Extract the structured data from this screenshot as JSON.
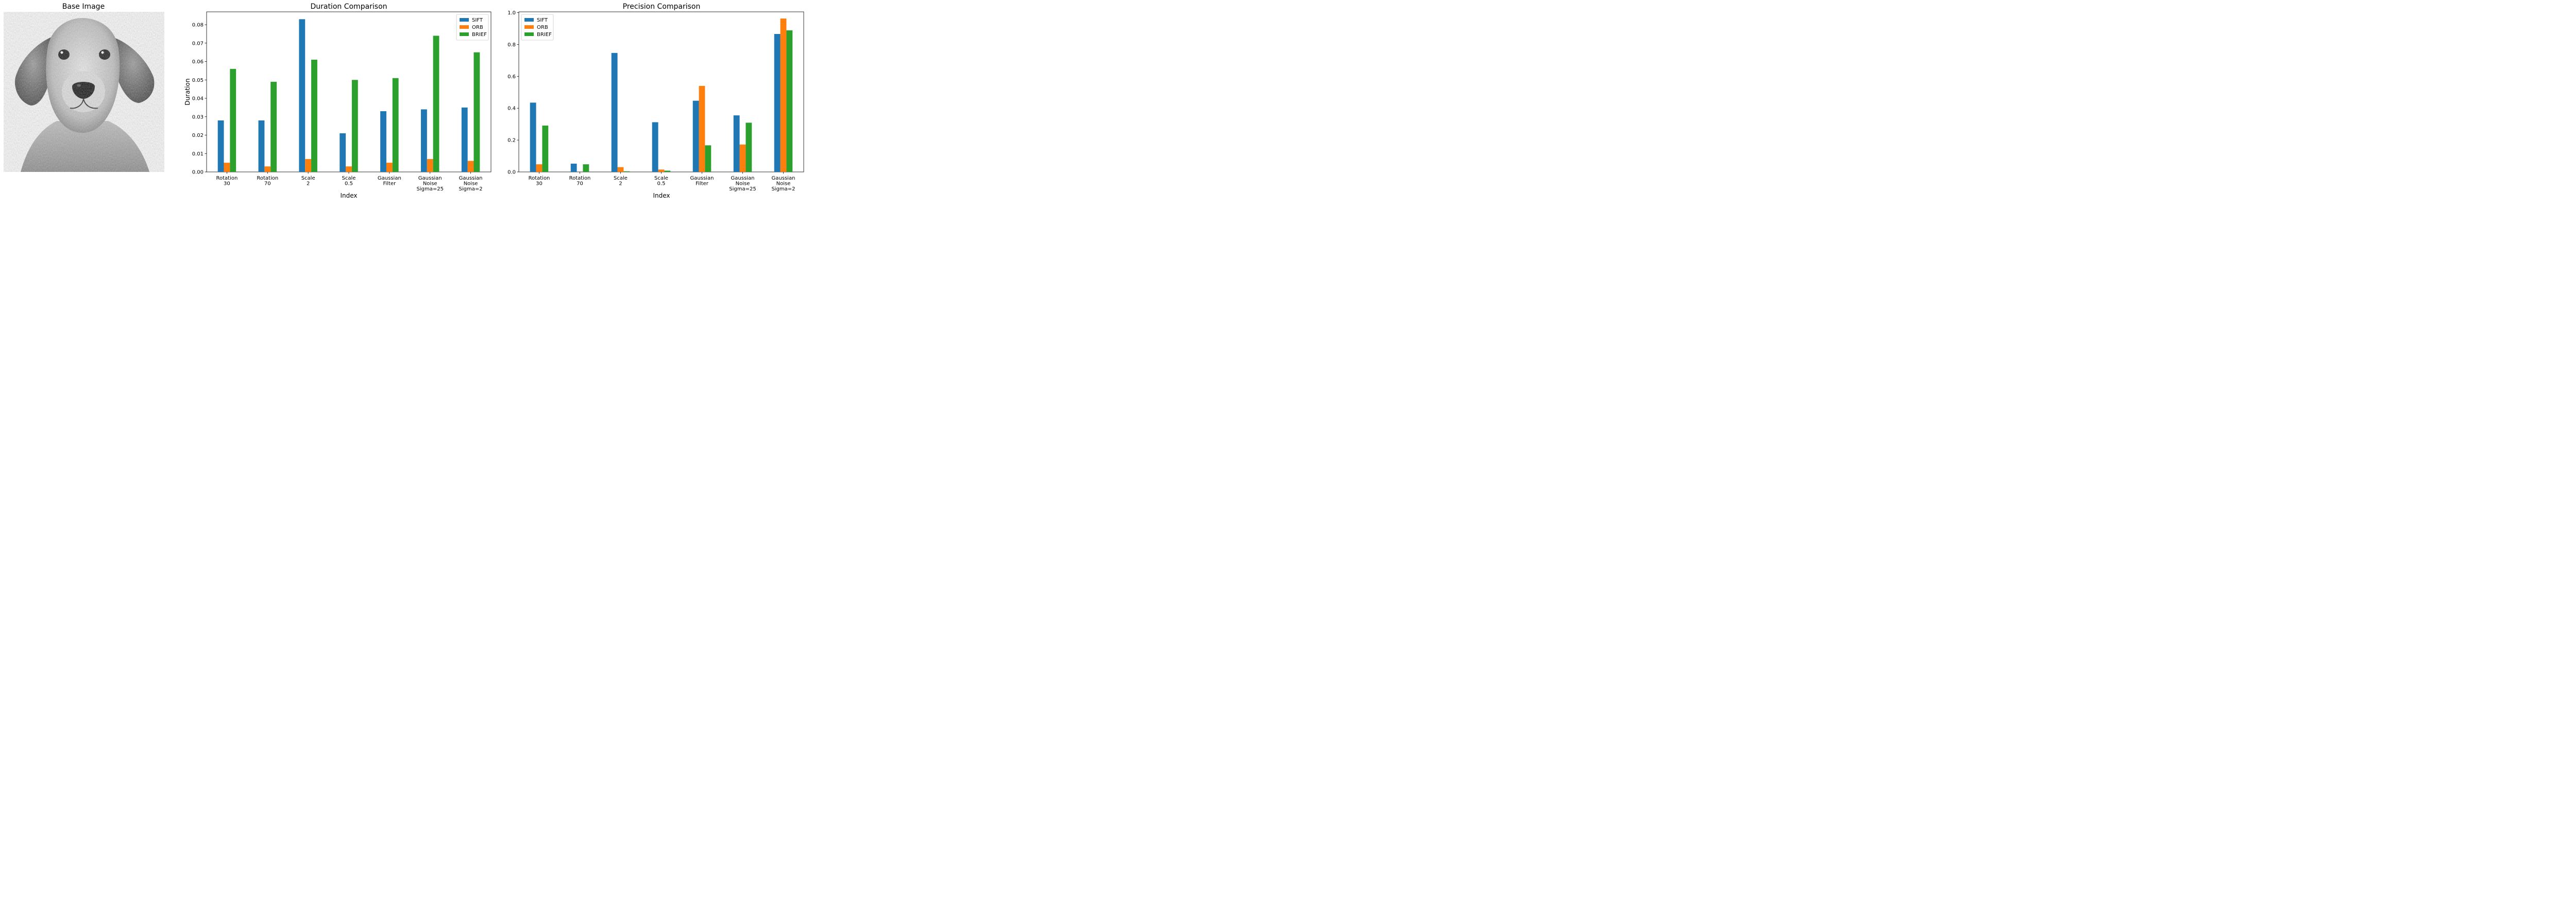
{
  "base_image": {
    "title": "Base Image",
    "subject": "grayscale golden retriever portrait"
  },
  "colors": {
    "SIFT": "#1f77b4",
    "ORB": "#ff7f0e",
    "BRIEF": "#2ca02c"
  },
  "chart_data": [
    {
      "type": "bar",
      "title": "Duration Comparison",
      "xlabel": "Index",
      "ylabel": "Duration",
      "ylim": [
        0,
        0.087
      ],
      "yticks": [
        0.0,
        0.01,
        0.02,
        0.03,
        0.04,
        0.05,
        0.06,
        0.07,
        0.08
      ],
      "ytick_labels": [
        "0.00",
        "0.01",
        "0.02",
        "0.03",
        "0.04",
        "0.05",
        "0.06",
        "0.07",
        "0.08"
      ],
      "categories": [
        [
          "Rotation",
          "30"
        ],
        [
          "Rotation",
          "70"
        ],
        [
          "Scale",
          "2"
        ],
        [
          "Scale",
          "0.5"
        ],
        [
          "Gaussian",
          "Filter"
        ],
        [
          "Gaussian",
          "Noise",
          "Sigma=25"
        ],
        [
          "Gaussian",
          "Noise",
          "Sigma=2"
        ]
      ],
      "series": [
        {
          "name": "SIFT",
          "values": [
            0.028,
            0.028,
            0.083,
            0.021,
            0.033,
            0.034,
            0.035
          ]
        },
        {
          "name": "ORB",
          "values": [
            0.005,
            0.003,
            0.007,
            0.003,
            0.005,
            0.007,
            0.006
          ]
        },
        {
          "name": "BRIEF",
          "values": [
            0.056,
            0.049,
            0.061,
            0.05,
            0.051,
            0.074,
            0.065
          ]
        }
      ],
      "legend": "top-right",
      "grid": false
    },
    {
      "type": "bar",
      "title": "Precision Comparison",
      "xlabel": "Index",
      "ylabel": "",
      "ylim": [
        0,
        1.005
      ],
      "yticks": [
        0.0,
        0.2,
        0.4,
        0.6,
        0.8,
        1.0
      ],
      "ytick_labels": [
        "0.0",
        "0.2",
        "0.4",
        "0.6",
        "0.8",
        "1.0"
      ],
      "categories": [
        [
          "Rotation",
          "30"
        ],
        [
          "Rotation",
          "70"
        ],
        [
          "Scale",
          "2"
        ],
        [
          "Scale",
          "0.5"
        ],
        [
          "Gaussian",
          "Filter"
        ],
        [
          "Gaussian",
          "Noise",
          "Sigma=25"
        ],
        [
          "Gaussian",
          "Noise",
          "Sigma=2"
        ]
      ],
      "series": [
        {
          "name": "SIFT",
          "values": [
            0.435,
            0.052,
            0.747,
            0.312,
            0.447,
            0.355,
            0.866
          ]
        },
        {
          "name": "ORB",
          "values": [
            0.048,
            0.0,
            0.03,
            0.015,
            0.54,
            0.172,
            0.963
          ]
        },
        {
          "name": "BRIEF",
          "values": [
            0.291,
            0.048,
            0.004,
            0.008,
            0.167,
            0.309,
            0.889
          ]
        }
      ],
      "legend": "top-left",
      "grid": false
    }
  ]
}
